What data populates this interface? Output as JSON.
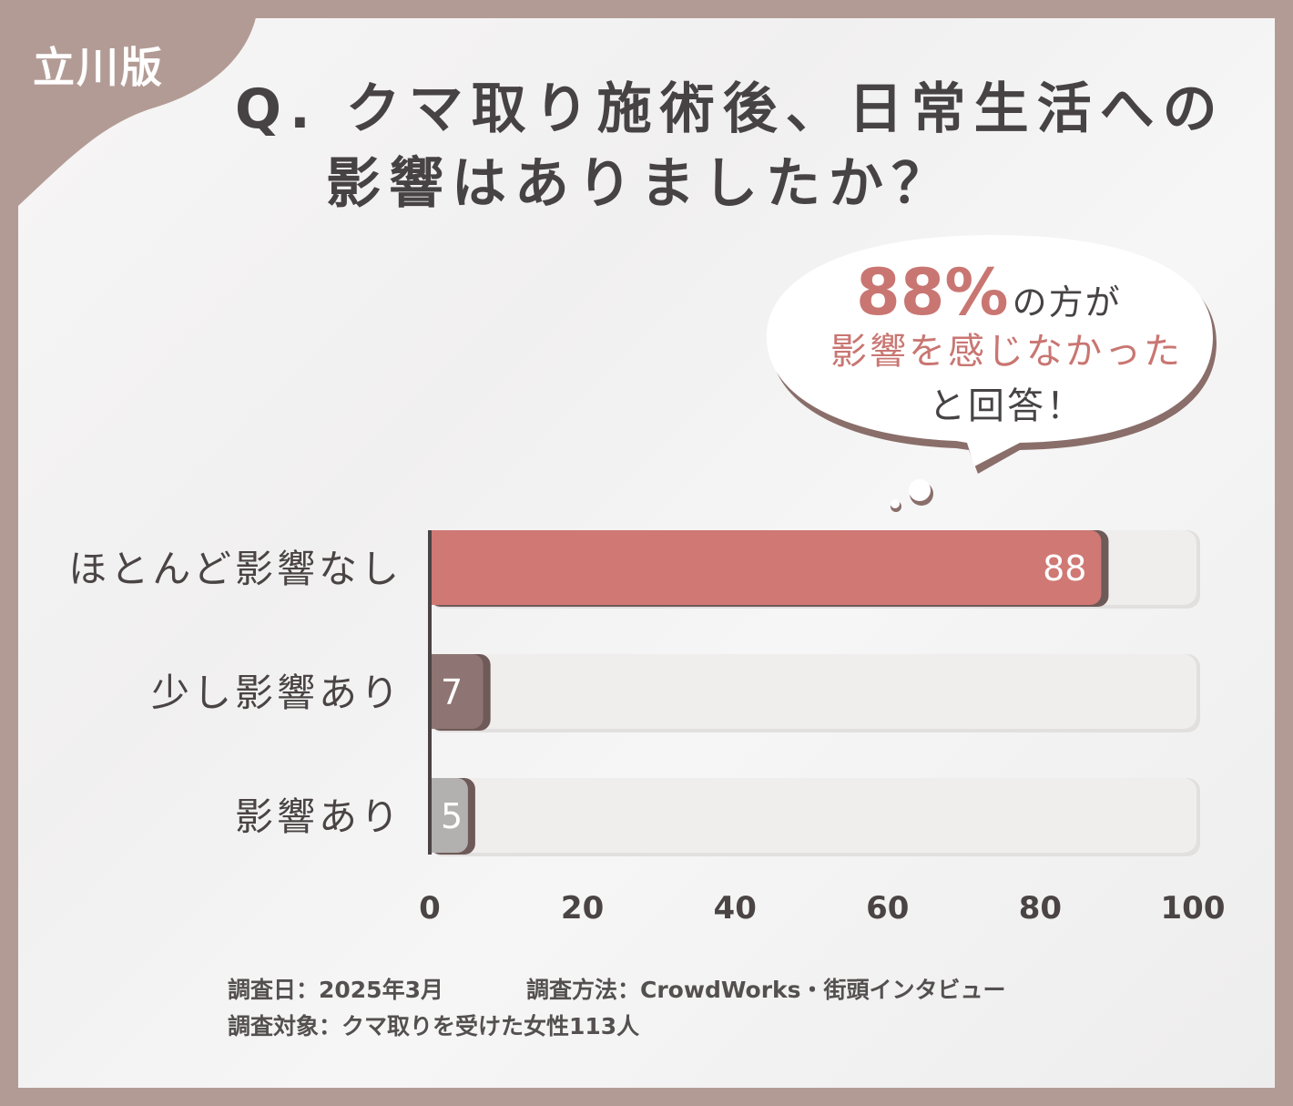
{
  "brand": "立川版",
  "title_line1": "Q. クマ取り施術後、日常生活への",
  "title_line2": "影響はありましたか？",
  "callout": {
    "percent": "88%",
    "part1": "の方が",
    "line2": "影響を感じなかった",
    "line3": "と回答！"
  },
  "chart_data": {
    "type": "bar",
    "orientation": "horizontal",
    "categories": [
      "ほとんど影響なし",
      "少し影響あり",
      "影響あり"
    ],
    "values": [
      88,
      7,
      5
    ],
    "data_labels": [
      "88",
      "7",
      "5"
    ],
    "xlim": [
      0,
      100
    ],
    "x_ticks": [
      "0",
      "20",
      "40",
      "60",
      "80",
      "100"
    ],
    "colors": [
      "#d07874",
      "#8e7472",
      "#b3b0b0"
    ],
    "track_color": "#f0eded",
    "grid": false
  },
  "footer": {
    "date": "調査日：2025年3月",
    "method": "調査方法：CrowdWorks・街頭インタビュー",
    "subject": "調査対象：クマ取りを受けた女性113人"
  }
}
